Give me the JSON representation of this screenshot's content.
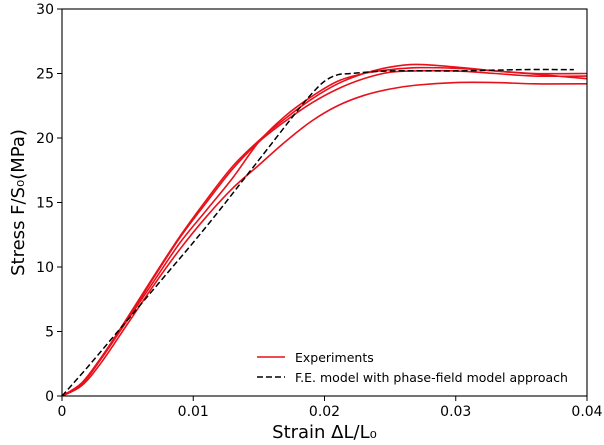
{
  "chart_data": {
    "type": "line",
    "xlabel": "Strain ΔL/L₀",
    "ylabel": "Stress F/S₀(MPa)",
    "xlim": [
      0,
      0.04
    ],
    "ylim": [
      0,
      30
    ],
    "x_ticks": [
      0,
      0.01,
      0.02,
      0.03,
      0.04
    ],
    "x_tick_labels": [
      "0",
      "0.01",
      "0.02",
      "0.03",
      "0.04"
    ],
    "y_ticks": [
      0,
      5,
      10,
      15,
      20,
      25,
      30
    ],
    "y_tick_labels": [
      "0",
      "5",
      "10",
      "15",
      "20",
      "25",
      "30"
    ],
    "grid": false,
    "legend_position": "bottom-right",
    "colors": {
      "experiments": "#e8101a",
      "model": "#000000"
    },
    "series": [
      {
        "name": "Experiments",
        "style": "solid",
        "color": "#e8101a",
        "x": [
          0,
          0.0015,
          0.003,
          0.005,
          0.007,
          0.009,
          0.011,
          0.013,
          0.015,
          0.017,
          0.019,
          0.021,
          0.023,
          0.025,
          0.027,
          0.03,
          0.033,
          0.036,
          0.04
        ],
        "y": [
          0,
          0.9,
          2.9,
          5.9,
          8.9,
          11.9,
          14.4,
          16.9,
          19.7,
          21.7,
          23.2,
          24.4,
          25.0,
          25.3,
          25.45,
          25.4,
          25.2,
          24.95,
          24.6
        ]
      },
      {
        "name": "",
        "style": "solid",
        "color": "#e8101a",
        "x": [
          0,
          0.0015,
          0.003,
          0.005,
          0.007,
          0.009,
          0.011,
          0.013,
          0.015,
          0.017,
          0.019,
          0.021,
          0.023,
          0.025,
          0.027,
          0.03,
          0.033,
          0.036,
          0.04
        ],
        "y": [
          0,
          1.0,
          3.0,
          6.0,
          9.2,
          12.3,
          15.0,
          17.6,
          19.7,
          21.3,
          22.7,
          23.8,
          24.6,
          25.1,
          25.2,
          25.2,
          25.0,
          24.8,
          24.8
        ]
      },
      {
        "name": "",
        "style": "solid",
        "color": "#e8101a",
        "x": [
          0,
          0.0015,
          0.003,
          0.005,
          0.007,
          0.009,
          0.011,
          0.013,
          0.015,
          0.017,
          0.019,
          0.021,
          0.023,
          0.025,
          0.027,
          0.03,
          0.033,
          0.036,
          0.04
        ],
        "y": [
          0,
          1.0,
          3.0,
          6.1,
          9.3,
          12.4,
          15.2,
          17.8,
          19.8,
          21.5,
          23.0,
          24.2,
          25.0,
          25.5,
          25.7,
          25.5,
          25.2,
          25.0,
          25.0
        ]
      },
      {
        "name": "",
        "style": "solid",
        "color": "#e8101a",
        "x": [
          0,
          0.0015,
          0.003,
          0.005,
          0.007,
          0.009,
          0.011,
          0.013,
          0.015,
          0.017,
          0.019,
          0.021,
          0.023,
          0.025,
          0.027,
          0.03,
          0.033,
          0.036,
          0.04
        ],
        "y": [
          0,
          0.8,
          2.6,
          5.6,
          8.6,
          11.4,
          13.9,
          16.1,
          17.9,
          19.7,
          21.3,
          22.5,
          23.3,
          23.8,
          24.1,
          24.3,
          24.3,
          24.2,
          24.2
        ]
      },
      {
        "name": "F.E. model with phase-field model approach",
        "style": "dashed",
        "color": "#000000",
        "x": [
          0,
          0.002,
          0.004,
          0.006,
          0.008,
          0.01,
          0.012,
          0.014,
          0.016,
          0.018,
          0.019,
          0.02,
          0.021,
          0.022,
          0.025,
          0.03,
          0.035,
          0.039
        ],
        "y": [
          0,
          2.3,
          4.7,
          7.1,
          9.5,
          11.9,
          14.4,
          17.0,
          19.6,
          22.2,
          23.4,
          24.4,
          24.9,
          25.0,
          25.2,
          25.2,
          25.3,
          25.3
        ]
      }
    ]
  }
}
